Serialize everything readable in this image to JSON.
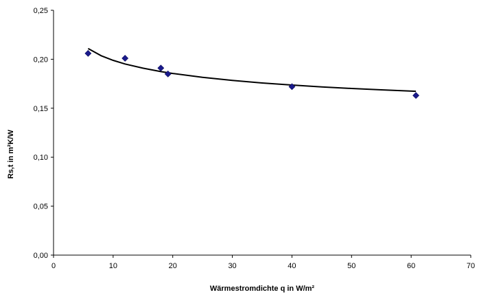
{
  "chart_data": {
    "type": "scatter",
    "title": "",
    "xlabel": "Wärmestromdichte q in W/m²",
    "ylabel": "Rs,t in m²K/W",
    "xlim": [
      0,
      70
    ],
    "ylim": [
      0,
      0.25
    ],
    "x_ticks": [
      "0",
      "10",
      "20",
      "30",
      "40",
      "50",
      "60",
      "70"
    ],
    "y_ticks": [
      "0,00",
      "0,05",
      "0,10",
      "0,15",
      "0,20",
      "0,25"
    ],
    "grid": false,
    "legend": "none",
    "marker_color": "#1a1a8c",
    "trend_color": "#000000",
    "series": [
      {
        "x": [
          5.8,
          12.0,
          18.0,
          19.2,
          40.0,
          60.8
        ],
        "y": [
          0.206,
          0.201,
          0.191,
          0.185,
          0.172,
          0.163
        ]
      }
    ],
    "trendline": {
      "type": "power",
      "x": [
        5.8,
        8,
        10,
        12,
        15,
        18,
        20,
        25,
        30,
        35,
        40,
        45,
        50,
        55,
        60.8
      ],
      "y": [
        0.211,
        0.2036,
        0.1989,
        0.1952,
        0.1909,
        0.1874,
        0.1855,
        0.1815,
        0.1784,
        0.1758,
        0.1737,
        0.1718,
        0.1702,
        0.1688,
        0.1673
      ]
    }
  }
}
